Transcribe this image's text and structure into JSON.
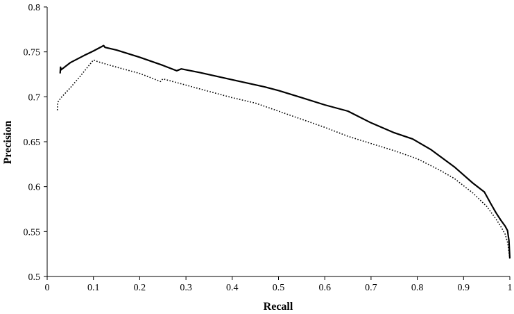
{
  "chart_data": {
    "type": "line",
    "title": "",
    "xlabel": "Recall",
    "ylabel": "Precision",
    "xlim": [
      0,
      1
    ],
    "ylim": [
      0.5,
      0.8
    ],
    "xticks": [
      0,
      0.1,
      0.2,
      0.3,
      0.4,
      0.5,
      0.6,
      0.7,
      0.8,
      0.9,
      1
    ],
    "yticks": [
      0.5,
      0.55,
      0.6,
      0.65,
      0.7,
      0.75,
      0.8
    ],
    "xtick_labels": [
      "0",
      "0.1",
      "0.2",
      "0.3",
      "0.4",
      "0.5",
      "0.6",
      "0.7",
      "0.8",
      "0.9",
      "1"
    ],
    "ytick_labels": [
      "0.5",
      "0.55",
      "0.6",
      "0.65",
      "0.7",
      "0.75",
      "0.8"
    ],
    "grid": false,
    "legend": "none",
    "series": [
      {
        "style": "solid",
        "color": "#000000",
        "points": [
          [
            0.028,
            0.726
          ],
          [
            0.029,
            0.733
          ],
          [
            0.03,
            0.73
          ],
          [
            0.05,
            0.738
          ],
          [
            0.08,
            0.746
          ],
          [
            0.1,
            0.751
          ],
          [
            0.122,
            0.757
          ],
          [
            0.125,
            0.755
          ],
          [
            0.15,
            0.752
          ],
          [
            0.2,
            0.744
          ],
          [
            0.25,
            0.735
          ],
          [
            0.28,
            0.729
          ],
          [
            0.29,
            0.731
          ],
          [
            0.33,
            0.727
          ],
          [
            0.4,
            0.719
          ],
          [
            0.47,
            0.711
          ],
          [
            0.5,
            0.707
          ],
          [
            0.55,
            0.699
          ],
          [
            0.6,
            0.691
          ],
          [
            0.65,
            0.684
          ],
          [
            0.7,
            0.671
          ],
          [
            0.75,
            0.66
          ],
          [
            0.79,
            0.653
          ],
          [
            0.83,
            0.641
          ],
          [
            0.88,
            0.622
          ],
          [
            0.92,
            0.604
          ],
          [
            0.945,
            0.594
          ],
          [
            0.96,
            0.58
          ],
          [
            0.97,
            0.571
          ],
          [
            0.98,
            0.563
          ],
          [
            0.99,
            0.556
          ],
          [
            0.995,
            0.551
          ],
          [
            0.998,
            0.54
          ],
          [
            1.0,
            0.52
          ]
        ]
      },
      {
        "style": "dotted",
        "color": "#000000",
        "points": [
          [
            0.022,
            0.685
          ],
          [
            0.023,
            0.694
          ],
          [
            0.03,
            0.699
          ],
          [
            0.05,
            0.71
          ],
          [
            0.07,
            0.722
          ],
          [
            0.1,
            0.741
          ],
          [
            0.11,
            0.739
          ],
          [
            0.15,
            0.733
          ],
          [
            0.2,
            0.726
          ],
          [
            0.245,
            0.717
          ],
          [
            0.25,
            0.72
          ],
          [
            0.3,
            0.713
          ],
          [
            0.35,
            0.706
          ],
          [
            0.4,
            0.699
          ],
          [
            0.45,
            0.693
          ],
          [
            0.5,
            0.684
          ],
          [
            0.55,
            0.675
          ],
          [
            0.6,
            0.666
          ],
          [
            0.65,
            0.656
          ],
          [
            0.7,
            0.648
          ],
          [
            0.75,
            0.64
          ],
          [
            0.8,
            0.631
          ],
          [
            0.85,
            0.618
          ],
          [
            0.88,
            0.609
          ],
          [
            0.92,
            0.593
          ],
          [
            0.95,
            0.578
          ],
          [
            0.97,
            0.564
          ],
          [
            0.98,
            0.556
          ],
          [
            0.99,
            0.547
          ],
          [
            0.995,
            0.538
          ],
          [
            1.0,
            0.52
          ]
        ]
      }
    ]
  }
}
